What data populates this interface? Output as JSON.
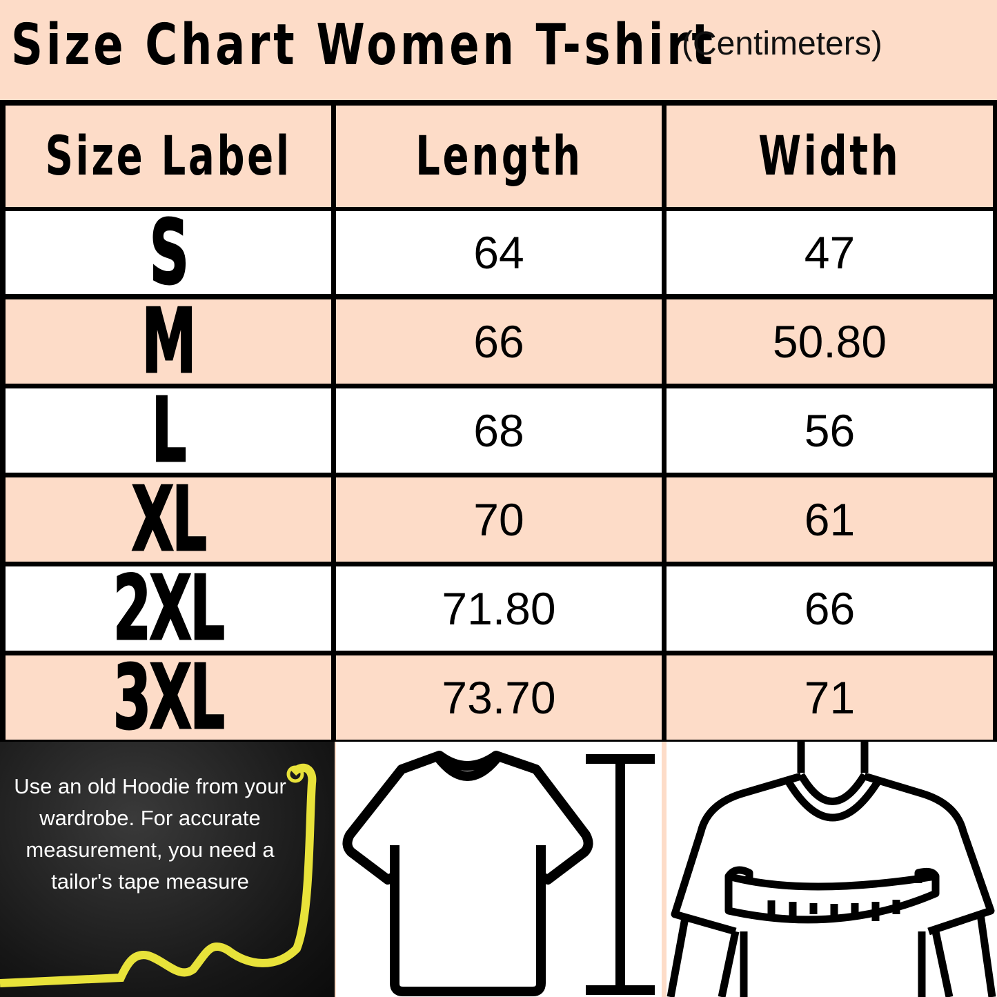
{
  "title": "Size Chart Women T-shirt",
  "unit": "(Centimeters)",
  "colors": {
    "accent": "#fddcc8",
    "border": "#000000",
    "tape": "#e8e23a"
  },
  "table": {
    "headers": [
      "Size Label",
      "Length",
      "Width"
    ],
    "rows": [
      {
        "size": "S",
        "length": "64",
        "width": "47"
      },
      {
        "size": "M",
        "length": "66",
        "width": "50.80"
      },
      {
        "size": "L",
        "length": "68",
        "width": "56"
      },
      {
        "size": "XL",
        "length": "70",
        "width": "61"
      },
      {
        "size": "2XL",
        "length": "71.80",
        "width": "66"
      },
      {
        "size": "3XL",
        "length": "73.70",
        "width": "71"
      }
    ]
  },
  "tip": "Use an old Hoodie from your wardrobe. For accurate measurement, you need a tailor's tape measure",
  "icons": {
    "length": "tshirt-length-icon",
    "width": "chest-measure-icon",
    "tape": "tape-measure-icon"
  }
}
